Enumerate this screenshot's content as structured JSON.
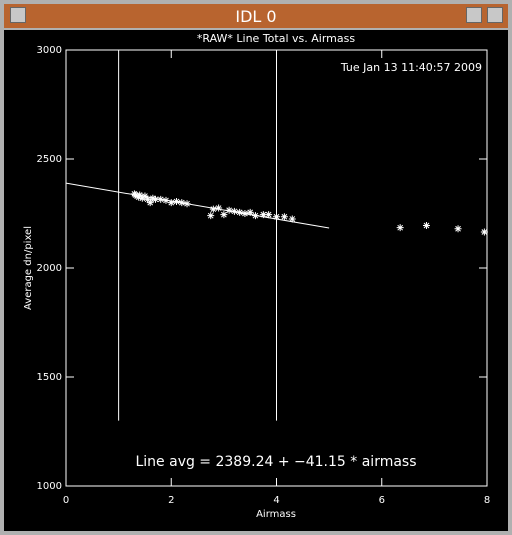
{
  "window": {
    "title": "IDL 0"
  },
  "chart_data": {
    "type": "scatter",
    "title": "*RAW* Line Total vs. Airmass",
    "timestamp": "Tue Jan 13 11:40:57 2009",
    "x_label": "Airmass",
    "y_label": "Average dn/pixel",
    "annotation": "Line avg = 2389.24 + −41.15 * airmass",
    "x": [
      1.3,
      1.32,
      1.35,
      1.38,
      1.4,
      1.45,
      1.5,
      1.55,
      1.6,
      1.65,
      1.7,
      1.8,
      1.9,
      2.0,
      2.1,
      2.2,
      2.3,
      2.75,
      2.8,
      2.9,
      3.0,
      3.1,
      3.2,
      3.3,
      3.4,
      3.5,
      3.6,
      3.75,
      3.85,
      4.0,
      4.15,
      4.3,
      6.35,
      6.85,
      7.45,
      7.95
    ],
    "values": [
      2340,
      2335,
      2330,
      2325,
      2335,
      2320,
      2330,
      2315,
      2300,
      2320,
      2315,
      2315,
      2310,
      2300,
      2305,
      2300,
      2295,
      2240,
      2270,
      2275,
      2245,
      2265,
      2260,
      2255,
      2250,
      2255,
      2240,
      2245,
      2245,
      2235,
      2235,
      2225,
      2185,
      2195,
      2180,
      2165
    ],
    "color": "#ffffff",
    "fit": {
      "intercept": 2389.24,
      "slope": -41.15,
      "x_range": [
        0,
        5
      ]
    },
    "vlines": [
      1,
      4
    ],
    "vline_range": [
      1300,
      3000
    ],
    "xlim": [
      0,
      8
    ],
    "xticks": [
      0,
      2,
      4,
      6,
      8
    ],
    "ylim": [
      1000,
      3000
    ],
    "yticks": [
      1000,
      1500,
      2000,
      2500,
      3000
    ]
  }
}
